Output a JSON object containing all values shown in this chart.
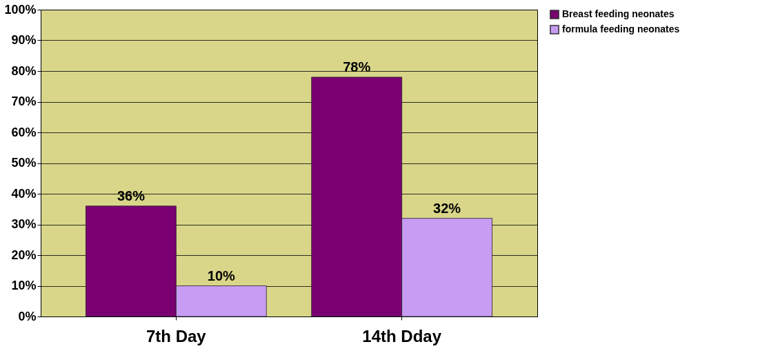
{
  "chart_data": {
    "type": "bar",
    "categories": [
      "7th Day",
      "14th Dday"
    ],
    "series": [
      {
        "name": "Breast feeding neonates",
        "color": "#7a0072",
        "values": [
          36,
          78
        ],
        "value_labels": [
          "36%",
          "78%"
        ]
      },
      {
        "name": "formula feeding neonates",
        "color": "#c89cf2",
        "values": [
          10,
          32
        ],
        "value_labels": [
          "10%",
          "32%"
        ]
      }
    ],
    "ylim": [
      0,
      100
    ],
    "yticks": [
      {
        "value": 0,
        "label": "0%"
      },
      {
        "value": 10,
        "label": "10%"
      },
      {
        "value": 20,
        "label": "20%"
      },
      {
        "value": 30,
        "label": "30%"
      },
      {
        "value": 40,
        "label": "40%"
      },
      {
        "value": 50,
        "label": "50%"
      },
      {
        "value": 60,
        "label": "60%"
      },
      {
        "value": 70,
        "label": "70%"
      },
      {
        "value": 80,
        "label": "80%"
      },
      {
        "value": 90,
        "label": "90%"
      },
      {
        "value": 100,
        "label": "100%"
      }
    ],
    "grid": "y",
    "legend": "right"
  }
}
